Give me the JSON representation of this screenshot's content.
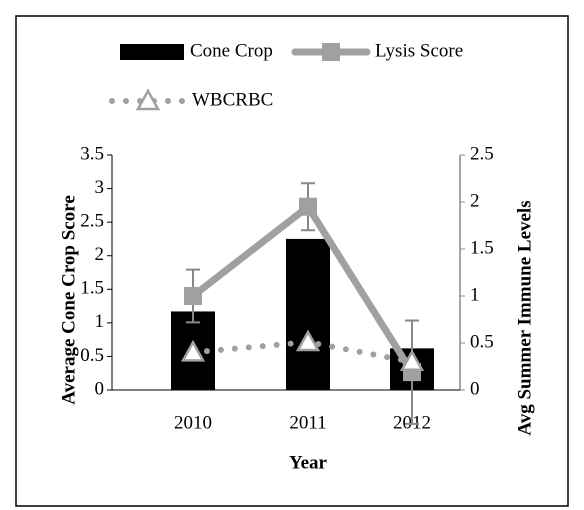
{
  "chart_data": {
    "type": "bar_line",
    "categories": [
      "2010",
      "2011",
      "2012"
    ],
    "xlabel": "Year",
    "ylabel": "Average Cone Crop Score",
    "y2label": "Avg Summer Immune Levels",
    "ylim": [
      0,
      3.5
    ],
    "yticks": [
      0,
      0.5,
      1,
      1.5,
      2,
      2.5,
      3,
      3.5
    ],
    "y2lim": [
      0,
      2.5
    ],
    "y2ticks": [
      0,
      0.5,
      1,
      1.5,
      2,
      2.5
    ],
    "grid": false,
    "series": [
      {
        "name": "Cone Crop",
        "kind": "bar",
        "color": "#000000",
        "values": [
          1.17,
          2.25,
          0.62
        ]
      },
      {
        "name": "Lysis Score",
        "kind": "line",
        "marker": "square",
        "axis": "y2",
        "color": "#a0a0a0",
        "values": [
          1.0,
          1.95,
          0.19
        ],
        "errors": [
          0.28,
          0.25,
          0.55
        ]
      },
      {
        "name": "WBCRBC",
        "kind": "dotted",
        "marker": "triangle",
        "axis": "y2",
        "color": "#a0a0a0",
        "values": [
          0.4,
          0.51,
          0.3
        ]
      }
    ]
  }
}
